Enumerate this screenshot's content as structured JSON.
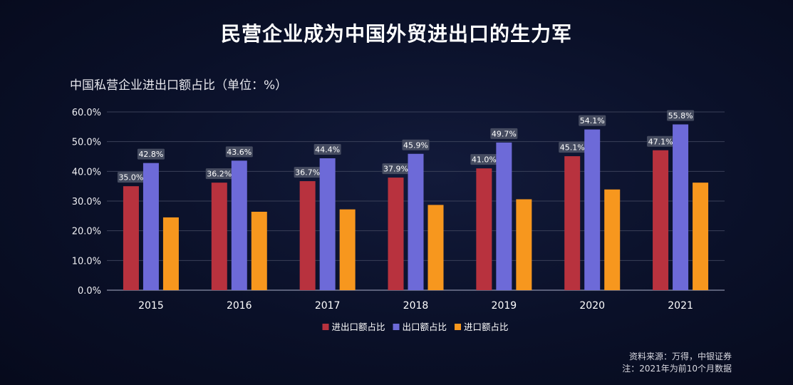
{
  "title": "民营企业成为中国外贸进出口的生力军",
  "chart_data": {
    "type": "bar",
    "title": "中国私营企业进出口额占比（单位：%）",
    "categories": [
      "2015",
      "2016",
      "2017",
      "2018",
      "2019",
      "2020",
      "2021"
    ],
    "series": [
      {
        "name": "进出口额占比",
        "color": "#b8323e",
        "values": [
          35.0,
          36.2,
          36.7,
          37.9,
          41.0,
          45.1,
          47.1
        ],
        "labeled": true
      },
      {
        "name": "出口额占比",
        "color": "#6d6ad8",
        "values": [
          42.8,
          43.6,
          44.4,
          45.9,
          49.7,
          54.1,
          55.8
        ],
        "labeled": true
      },
      {
        "name": "进口额占比",
        "color": "#f7971e",
        "values": [
          24.5,
          26.4,
          27.2,
          28.7,
          30.6,
          33.9,
          36.2
        ],
        "labeled": false
      }
    ],
    "ylim": [
      0,
      60
    ],
    "yticks": [
      0,
      10,
      20,
      30,
      40,
      50,
      60
    ],
    "ytick_labels": [
      "0.0%",
      "10.0%",
      "20.0%",
      "30.0%",
      "40.0%",
      "50.0%",
      "60.0%"
    ],
    "data_labels": {
      "进出口额占比": [
        "35.0%",
        "36.2%",
        "36.7%",
        "37.9%",
        "41.0%",
        "45.1%",
        "47.1%"
      ],
      "出口额占比": [
        "42.8%",
        "43.6%",
        "44.4%",
        "45.9%",
        "49.7%",
        "54.1%",
        "55.8%"
      ]
    },
    "grid": true,
    "legend_position": "bottom"
  },
  "source": {
    "line1": "资料来源：万得，中银证券",
    "line2": "注：2021年为前10个月数据"
  }
}
